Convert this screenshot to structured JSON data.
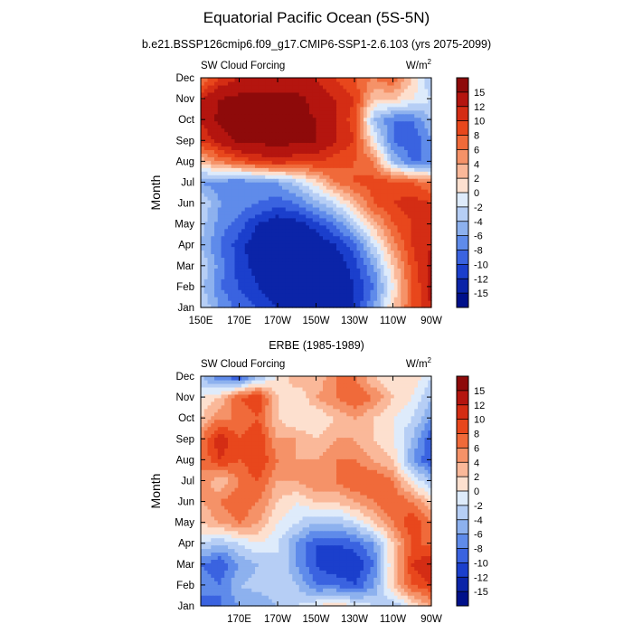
{
  "title": "Equatorial Pacific Ocean (5S-5N)",
  "subtitle": "b.e21.BSSP126cmip6.f09_g17.CMIP6-SSP1-2.6.103 (yrs 2075-2099)",
  "colorbar": {
    "levels": [
      "15",
      "12",
      "10",
      "8",
      "6",
      "4",
      "2",
      "0",
      "-2",
      "-4",
      "-6",
      "-8",
      "-10",
      "-12",
      "-15"
    ],
    "colors": [
      "#8e0a0a",
      "#b4150f",
      "#d42d14",
      "#e8471c",
      "#f06a3a",
      "#f59268",
      "#fab899",
      "#fde0cf",
      "#deebfb",
      "#b6cef5",
      "#8db1ee",
      "#5f8bea",
      "#3a63e0",
      "#1b3fcc",
      "#0b24a8",
      "#00108a"
    ]
  },
  "chart_data": [
    {
      "type": "heatmap",
      "title": "",
      "left_string": "SW Cloud Forcing",
      "units_base": "W/m",
      "units_exp": "2",
      "xlabel": "",
      "ylabel": "Month",
      "x_ticks": [
        "150E",
        "170E",
        "170W",
        "150W",
        "130W",
        "110W",
        "90W"
      ],
      "y_ticks": [
        "Jan",
        "Feb",
        "Mar",
        "Apr",
        "May",
        "Jun",
        "Jul",
        "Aug",
        "Sep",
        "Oct",
        "Nov",
        "Dec"
      ],
      "x": [
        150,
        160,
        170,
        180,
        190,
        200,
        210,
        220,
        230,
        240,
        250,
        260,
        270
      ],
      "z": [
        [
          -2,
          -6,
          -9,
          -10,
          -12,
          -13,
          -14,
          -13,
          -12,
          -6,
          2,
          8,
          12
        ],
        [
          -3,
          -8,
          -10,
          -12,
          -14,
          -15,
          -15,
          -14,
          -12,
          -8,
          0,
          8,
          13
        ],
        [
          -2,
          -7,
          -11,
          -13,
          -15,
          -15,
          -15,
          -14,
          -11,
          -6,
          2,
          9,
          13
        ],
        [
          -4,
          -8,
          -11,
          -14,
          -15,
          -15,
          -14,
          -12,
          -9,
          -2,
          5,
          10,
          12
        ],
        [
          -3,
          -7,
          -9,
          -12,
          -14,
          -13,
          -11,
          -8,
          -3,
          3,
          8,
          10,
          12
        ],
        [
          -2,
          -6,
          -7,
          -8,
          -9,
          -8,
          -5,
          -2,
          3,
          8,
          10,
          11,
          10
        ],
        [
          -6,
          -7,
          -8,
          -7,
          -6,
          -3,
          1,
          6,
          8,
          9,
          9,
          8,
          6
        ],
        [
          2,
          6,
          8,
          10,
          11,
          10,
          10,
          9,
          8,
          6,
          -4,
          -8,
          -8
        ],
        [
          10,
          13,
          16,
          16,
          16,
          16,
          15,
          12,
          10,
          0,
          -8,
          -10,
          -6
        ],
        [
          12,
          16,
          16,
          17,
          17,
          16,
          15,
          12,
          9,
          -4,
          -8,
          -8,
          -4
        ],
        [
          12,
          15,
          16,
          16,
          16,
          16,
          14,
          12,
          10,
          2,
          2,
          0,
          -2
        ],
        [
          6,
          10,
          12,
          12,
          12,
          12,
          12,
          10,
          8,
          6,
          8,
          2,
          -4
        ]
      ]
    },
    {
      "type": "heatmap",
      "title": "ERBE (1985-1989)",
      "left_string": "SW Cloud Forcing",
      "units_base": "W/m",
      "units_exp": "2",
      "xlabel": "",
      "ylabel": "Month",
      "x_ticks": [
        "",
        "170E",
        "170W",
        "150W",
        "130W",
        "110W",
        "90W"
      ],
      "y_ticks": [
        "Jan",
        "Feb",
        "Mar",
        "Apr",
        "May",
        "Jun",
        "Jul",
        "Aug",
        "Sep",
        "Oct",
        "Nov",
        "Dec"
      ],
      "x": [
        150,
        160,
        170,
        180,
        190,
        200,
        210,
        220,
        230,
        240,
        250,
        260,
        270
      ],
      "z": [
        [
          -10,
          -8,
          -6,
          -6,
          -4,
          -2,
          0,
          2,
          0,
          -2,
          -4,
          0,
          4
        ],
        [
          -6,
          -8,
          -4,
          -3,
          -2,
          -4,
          -8,
          -8,
          -10,
          -6,
          2,
          8,
          10
        ],
        [
          -8,
          -10,
          -6,
          -4,
          -2,
          -6,
          -10,
          -12,
          -12,
          -8,
          2,
          10,
          12
        ],
        [
          -2,
          -4,
          -2,
          0,
          -2,
          -6,
          -10,
          -10,
          -9,
          -6,
          2,
          8,
          8
        ],
        [
          2,
          4,
          6,
          4,
          0,
          -2,
          -4,
          -4,
          -2,
          2,
          6,
          10,
          6
        ],
        [
          4,
          6,
          8,
          6,
          2,
          0,
          2,
          2,
          4,
          6,
          8,
          6,
          2
        ],
        [
          6,
          2,
          6,
          8,
          4,
          4,
          6,
          6,
          8,
          8,
          6,
          0,
          -4
        ],
        [
          6,
          10,
          8,
          10,
          6,
          4,
          4,
          6,
          6,
          4,
          2,
          -6,
          -10
        ],
        [
          6,
          12,
          8,
          10,
          4,
          4,
          2,
          4,
          4,
          2,
          0,
          -4,
          -10
        ],
        [
          2,
          6,
          6,
          8,
          2,
          0,
          0,
          2,
          4,
          2,
          0,
          -2,
          -6
        ],
        [
          0,
          2,
          8,
          10,
          2,
          0,
          4,
          6,
          8,
          6,
          2,
          0,
          -4
        ],
        [
          -4,
          -8,
          -10,
          -4,
          0,
          4,
          2,
          6,
          6,
          2,
          0,
          2,
          -2
        ]
      ]
    }
  ]
}
